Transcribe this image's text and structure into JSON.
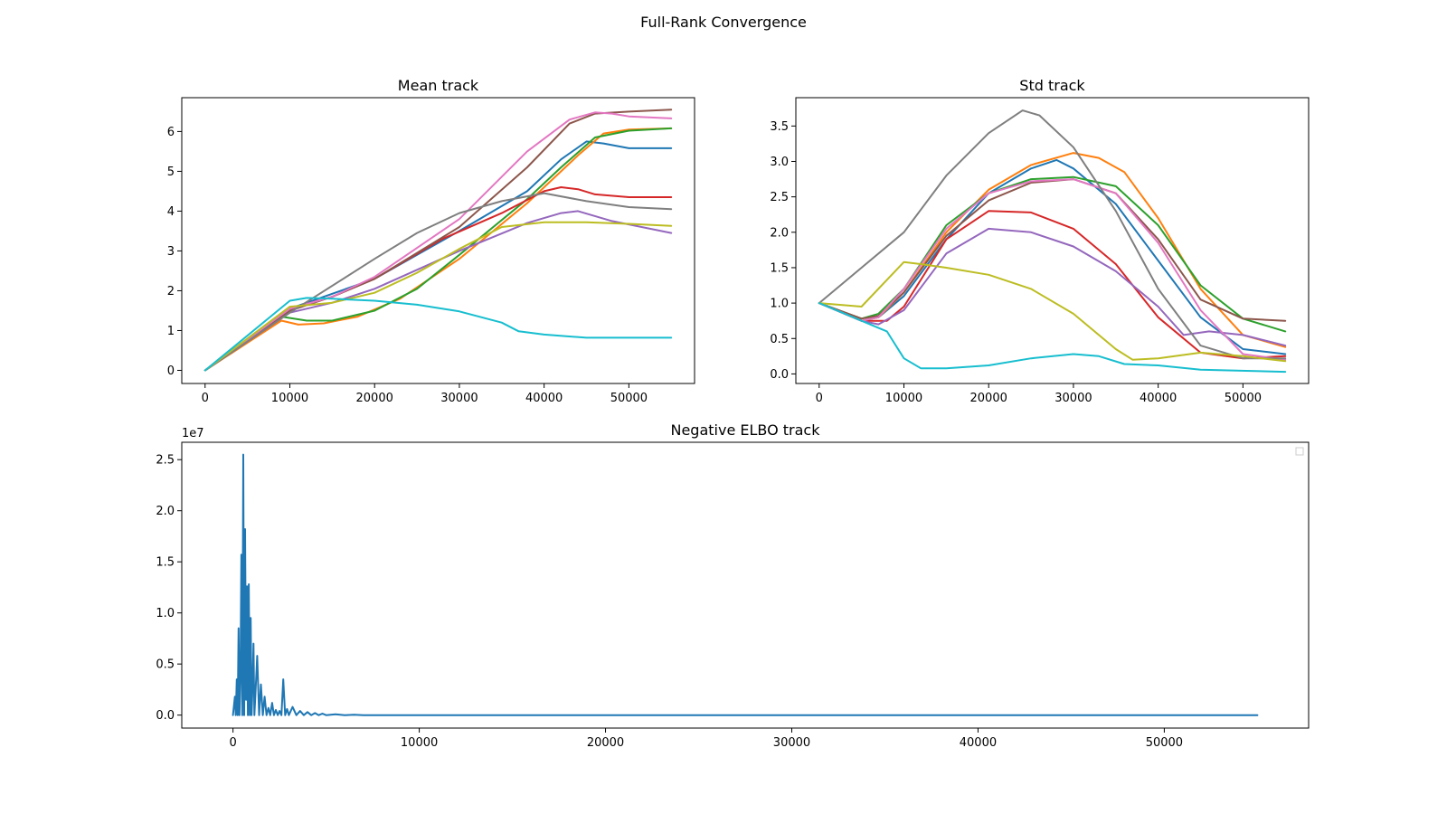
{
  "figure": {
    "title": "Full-Rank Convergence"
  },
  "palette": [
    "#1f77b4",
    "#ff7f0e",
    "#2ca02c",
    "#d62728",
    "#9467bd",
    "#8c564b",
    "#e377c2",
    "#7f7f7f",
    "#bcbd22",
    "#17becf"
  ],
  "chart_data": [
    {
      "type": "line",
      "title": "Mean track",
      "xlim": [
        -2750,
        57750
      ],
      "ylim": [
        -0.33,
        6.85
      ],
      "xticks": [
        0,
        10000,
        20000,
        30000,
        40000,
        50000
      ],
      "xtick_labels": [
        "0",
        "10000",
        "20000",
        "30000",
        "40000",
        "50000"
      ],
      "yticks": [
        0,
        1,
        2,
        3,
        4,
        5,
        6
      ],
      "ytick_labels": [
        "0",
        "1",
        "2",
        "3",
        "4",
        "5",
        "6"
      ],
      "series": [
        {
          "color": "#1f77b4",
          "x": [
            0,
            10000,
            12000,
            20000,
            30000,
            38000,
            42000,
            45000,
            47000,
            50000,
            55000
          ],
          "y": [
            0,
            1.55,
            1.7,
            2.3,
            3.5,
            4.5,
            5.3,
            5.75,
            5.7,
            5.58,
            5.58
          ]
        },
        {
          "color": "#ff7f0e",
          "x": [
            0,
            9000,
            11000,
            14000,
            18000,
            23000,
            30000,
            38000,
            44000,
            47000,
            50000,
            55000
          ],
          "y": [
            0,
            1.25,
            1.15,
            1.18,
            1.35,
            1.8,
            2.8,
            4.2,
            5.4,
            5.95,
            6.05,
            6.08
          ]
        },
        {
          "color": "#2ca02c",
          "x": [
            0,
            9000,
            12000,
            15000,
            20000,
            25000,
            30000,
            38000,
            42000,
            46000,
            50000,
            55000
          ],
          "y": [
            0,
            1.35,
            1.25,
            1.25,
            1.5,
            2.05,
            2.9,
            4.3,
            5.1,
            5.85,
            6.02,
            6.08
          ]
        },
        {
          "color": "#d62728",
          "x": [
            0,
            10000,
            15000,
            20000,
            28000,
            35000,
            40000,
            42000,
            44000,
            46000,
            50000,
            55000
          ],
          "y": [
            0,
            1.55,
            1.85,
            2.3,
            3.3,
            3.95,
            4.5,
            4.6,
            4.55,
            4.42,
            4.35,
            4.35
          ]
        },
        {
          "color": "#9467bd",
          "x": [
            0,
            10000,
            15000,
            20000,
            30000,
            38000,
            42000,
            44000,
            48000,
            55000
          ],
          "y": [
            0,
            1.45,
            1.7,
            2.05,
            3.0,
            3.7,
            3.95,
            4.0,
            3.75,
            3.45
          ]
        },
        {
          "color": "#8c564b",
          "x": [
            0,
            10000,
            15000,
            20000,
            30000,
            38000,
            43000,
            46000,
            50000,
            55000
          ],
          "y": [
            0,
            1.5,
            1.85,
            2.3,
            3.6,
            5.1,
            6.2,
            6.45,
            6.5,
            6.55
          ]
        },
        {
          "color": "#e377c2",
          "x": [
            0,
            10000,
            15000,
            20000,
            30000,
            38000,
            43000,
            46000,
            48000,
            50000,
            55000
          ],
          "y": [
            0,
            1.55,
            1.85,
            2.35,
            3.8,
            5.5,
            6.3,
            6.48,
            6.45,
            6.38,
            6.33
          ]
        },
        {
          "color": "#7f7f7f",
          "x": [
            0,
            10000,
            20000,
            25000,
            30000,
            35000,
            40000,
            45000,
            50000,
            55000
          ],
          "y": [
            0,
            1.45,
            2.8,
            3.45,
            3.95,
            4.25,
            4.45,
            4.25,
            4.1,
            4.05
          ]
        },
        {
          "color": "#bcbd22",
          "x": [
            0,
            10000,
            15000,
            20000,
            25000,
            30000,
            35000,
            40000,
            45000,
            50000,
            55000
          ],
          "y": [
            0,
            1.6,
            1.7,
            1.95,
            2.45,
            3.05,
            3.6,
            3.72,
            3.72,
            3.68,
            3.63
          ]
        },
        {
          "color": "#17becf",
          "x": [
            0,
            10000,
            12000,
            15000,
            20000,
            25000,
            30000,
            35000,
            37000,
            40000,
            45000,
            55000
          ],
          "y": [
            0,
            1.75,
            1.82,
            1.8,
            1.75,
            1.65,
            1.48,
            1.2,
            0.98,
            0.9,
            0.82,
            0.82
          ]
        }
      ]
    },
    {
      "type": "line",
      "title": "Std track",
      "xlim": [
        -2750,
        57750
      ],
      "ylim": [
        -0.135,
        3.9
      ],
      "xticks": [
        0,
        10000,
        20000,
        30000,
        40000,
        50000
      ],
      "xtick_labels": [
        "0",
        "10000",
        "20000",
        "30000",
        "40000",
        "50000"
      ],
      "yticks": [
        0,
        0.5,
        1.0,
        1.5,
        2.0,
        2.5,
        3.0,
        3.5
      ],
      "ytick_labels": [
        "0.0",
        "0.5",
        "1.0",
        "1.5",
        "2.0",
        "2.5",
        "3.0",
        "3.5"
      ],
      "series": [
        {
          "color": "#1f77b4",
          "x": [
            0,
            5000,
            7000,
            10000,
            15000,
            20000,
            25000,
            28000,
            30000,
            35000,
            40000,
            45000,
            50000,
            55000
          ],
          "y": [
            1.0,
            0.75,
            0.8,
            1.1,
            1.9,
            2.55,
            2.9,
            3.02,
            2.9,
            2.4,
            1.6,
            0.8,
            0.35,
            0.28
          ]
        },
        {
          "color": "#ff7f0e",
          "x": [
            0,
            5000,
            7000,
            10000,
            15000,
            20000,
            25000,
            30000,
            33000,
            36000,
            40000,
            45000,
            50000,
            55000
          ],
          "y": [
            1.0,
            0.75,
            0.8,
            1.15,
            2.0,
            2.6,
            2.95,
            3.12,
            3.05,
            2.85,
            2.2,
            1.2,
            0.55,
            0.38
          ]
        },
        {
          "color": "#2ca02c",
          "x": [
            0,
            5000,
            7000,
            10000,
            15000,
            20000,
            25000,
            30000,
            35000,
            40000,
            45000,
            50000,
            55000
          ],
          "y": [
            1.0,
            0.78,
            0.85,
            1.2,
            2.1,
            2.55,
            2.75,
            2.78,
            2.65,
            2.1,
            1.25,
            0.78,
            0.6
          ]
        },
        {
          "color": "#d62728",
          "x": [
            0,
            5000,
            8000,
            10000,
            15000,
            20000,
            25000,
            30000,
            35000,
            40000,
            45000,
            50000,
            55000
          ],
          "y": [
            1.0,
            0.75,
            0.75,
            0.95,
            1.9,
            2.3,
            2.28,
            2.05,
            1.55,
            0.8,
            0.3,
            0.22,
            0.25
          ]
        },
        {
          "color": "#9467bd",
          "x": [
            0,
            5000,
            7000,
            10000,
            15000,
            20000,
            25000,
            30000,
            35000,
            40000,
            43000,
            46000,
            50000,
            55000
          ],
          "y": [
            1.0,
            0.75,
            0.7,
            0.9,
            1.7,
            2.05,
            2.0,
            1.8,
            1.45,
            0.95,
            0.55,
            0.6,
            0.55,
            0.4
          ]
        },
        {
          "color": "#8c564b",
          "x": [
            0,
            5000,
            7000,
            10000,
            15000,
            20000,
            25000,
            30000,
            35000,
            40000,
            45000,
            50000,
            55000
          ],
          "y": [
            1.0,
            0.78,
            0.82,
            1.15,
            1.95,
            2.45,
            2.7,
            2.75,
            2.55,
            1.9,
            1.05,
            0.78,
            0.75
          ]
        },
        {
          "color": "#e377c2",
          "x": [
            0,
            5000,
            7000,
            10000,
            15000,
            20000,
            25000,
            30000,
            35000,
            40000,
            45000,
            50000,
            55000
          ],
          "y": [
            1.0,
            0.75,
            0.8,
            1.2,
            2.05,
            2.55,
            2.72,
            2.75,
            2.55,
            1.85,
            0.9,
            0.28,
            0.2
          ]
        },
        {
          "color": "#7f7f7f",
          "x": [
            0,
            5000,
            10000,
            15000,
            20000,
            24000,
            26000,
            30000,
            35000,
            40000,
            45000,
            50000,
            55000
          ],
          "y": [
            1.0,
            1.5,
            2.0,
            2.8,
            3.4,
            3.72,
            3.65,
            3.2,
            2.3,
            1.2,
            0.4,
            0.22,
            0.22
          ]
        },
        {
          "color": "#bcbd22",
          "x": [
            0,
            5000,
            10000,
            12000,
            15000,
            20000,
            25000,
            30000,
            35000,
            37000,
            40000,
            45000,
            50000,
            55000
          ],
          "y": [
            1.0,
            0.95,
            1.58,
            1.55,
            1.5,
            1.4,
            1.2,
            0.85,
            0.35,
            0.2,
            0.22,
            0.3,
            0.25,
            0.18
          ]
        },
        {
          "color": "#17becf",
          "x": [
            0,
            5000,
            8000,
            10000,
            12000,
            15000,
            20000,
            25000,
            30000,
            33000,
            36000,
            40000,
            45000,
            55000
          ],
          "y": [
            1.0,
            0.75,
            0.6,
            0.22,
            0.08,
            0.08,
            0.12,
            0.22,
            0.28,
            0.25,
            0.14,
            0.12,
            0.06,
            0.03
          ]
        }
      ]
    },
    {
      "type": "line",
      "title": "Negative ELBO track",
      "xlim": [
        -2750,
        57750
      ],
      "ylim": [
        -1270000,
        26700000
      ],
      "xticks": [
        0,
        10000,
        20000,
        30000,
        40000,
        50000
      ],
      "xtick_labels": [
        "0",
        "10000",
        "20000",
        "30000",
        "40000",
        "50000"
      ],
      "yticks": [
        0,
        5000000,
        10000000,
        15000000,
        20000000,
        25000000
      ],
      "ytick_labels": [
        "0.0",
        "0.5",
        "1.0",
        "1.5",
        "2.0",
        "2.5"
      ],
      "offset_label": "1e7",
      "legend": "top-right (empty)",
      "series": [
        {
          "color": "#1f77b4",
          "x": [
            0,
            100,
            150,
            200,
            250,
            300,
            350,
            400,
            450,
            500,
            550,
            600,
            650,
            700,
            750,
            800,
            850,
            900,
            950,
            1000,
            1050,
            1100,
            1150,
            1200,
            1300,
            1400,
            1500,
            1600,
            1700,
            1800,
            1900,
            2000,
            2100,
            2200,
            2300,
            2400,
            2500,
            2600,
            2700,
            2800,
            2900,
            3000,
            3200,
            3400,
            3600,
            3800,
            4000,
            4200,
            4400,
            4600,
            4800,
            5000,
            5500,
            6000,
            6500,
            7000,
            55000
          ],
          "y": [
            0,
            1800000,
            0,
            3500000,
            0,
            8500000,
            0,
            4000000,
            15700000,
            0,
            25500000,
            0,
            18200000,
            1500000,
            12600000,
            0,
            12800000,
            0,
            9500000,
            0,
            3000000,
            7000000,
            0,
            2000000,
            5800000,
            0,
            3000000,
            0,
            1800000,
            0,
            700000,
            0,
            1200000,
            0,
            500000,
            0,
            400000,
            0,
            3500000,
            0,
            600000,
            0,
            800000,
            0,
            400000,
            0,
            300000,
            0,
            200000,
            0,
            150000,
            0,
            80000,
            0,
            30000,
            0,
            0
          ]
        }
      ]
    }
  ]
}
